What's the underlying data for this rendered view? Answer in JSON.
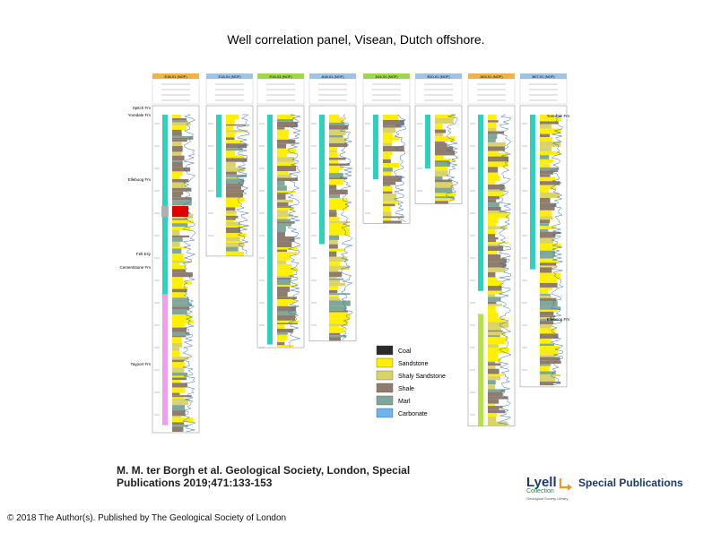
{
  "title": "Well correlation panel, Visean, Dutch offshore.",
  "citation": "M. M. ter Borgh et al. Geological Society, London, Special Publications 2019;471:133-153",
  "copyright": "© 2018 The Author(s). Published by The Geological Society of London",
  "brand": {
    "lyell": "Lyell",
    "collection": "Collection",
    "sub": "Geological Society Library",
    "special": "Special Publications"
  },
  "colors": {
    "coal": "#2a2a2a",
    "sandstone": "#ffef00",
    "shaly_sandstone": "#d9d36a",
    "shale": "#8e7d6f",
    "marl": "#7fa79a",
    "carbonate": "#6fb3ea",
    "teal_zone": "#30d0c0",
    "magenta_zone": "#f0a0e8",
    "orange_header": "#f2b14a",
    "blue_header": "#9dc3e6",
    "green_header": "#9fd84c"
  },
  "legend": [
    {
      "label": "Coal",
      "color": "#2a2a2a"
    },
    {
      "label": "Sandstone",
      "color": "#ffef00"
    },
    {
      "label": "Shaly Sandstone",
      "color": "#d9d36a"
    },
    {
      "label": "Shale",
      "color": "#8e7d6f"
    },
    {
      "label": "Marl",
      "color": "#7fa79a"
    },
    {
      "label": "Carbonate",
      "color": "#6fb3ea"
    }
  ],
  "formation_labels_left": [
    "Spitch Fm",
    "Yoredale Fm",
    "Elleboog Fm",
    "Fell Esy",
    "Cementstone Fm",
    "Tayport Fm"
  ],
  "formation_labels_right": [
    "Yoredale Fm",
    "Elleboog Fm"
  ],
  "wells": [
    {
      "name": "E18-01 (NOF)",
      "header": "orange_header",
      "depth_max": 1,
      "top": 1,
      "gap": 0.03
    },
    {
      "name": "E16-01 (NOF)",
      "header": "blue_header",
      "depth_max": 0.46,
      "top": 1,
      "gap": 0.03
    },
    {
      "name": "E16-03 (NOF)",
      "header": "green_header",
      "depth_max": 0.74,
      "top": 1,
      "gap": 0.02
    },
    {
      "name": "A18-01 (NOF)",
      "header": "blue_header",
      "depth_max": 0.72,
      "top": 1,
      "gap": 0.02
    },
    {
      "name": "A14-01 (NOF)",
      "header": "green_header",
      "depth_max": 0.36,
      "top": 1,
      "gap": 0.02
    },
    {
      "name": "B10-01 (NOF)",
      "header": "blue_header",
      "depth_max": 0.3,
      "top": 1,
      "gap": 0.02
    },
    {
      "name": "A03-01 (NOF)",
      "header": "orange_header",
      "depth_max": 0.98,
      "top": 1,
      "gap": 0.02
    },
    {
      "name": "B07-01 (NOF)",
      "header": "blue_header",
      "depth_max": 0.86,
      "top": 1,
      "gap": 0.02
    }
  ]
}
